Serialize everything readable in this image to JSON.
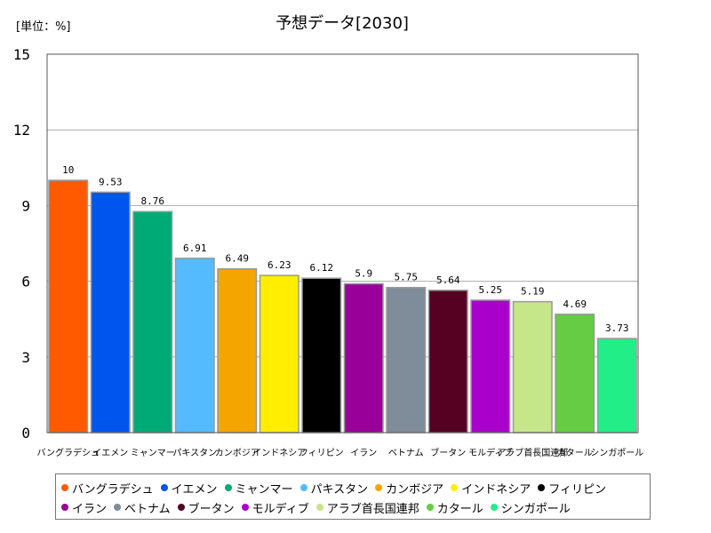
{
  "chart_data": {
    "type": "bar",
    "title": "予想データ[2030]",
    "unit_label": "[単位：%]",
    "ylim": [
      0,
      15
    ],
    "yticks": [
      0,
      3,
      6,
      9,
      12,
      15
    ],
    "grid": true,
    "legend_position": "bottom",
    "categories": [
      "バングラデシュ",
      "イエメン",
      "ミャンマー",
      "パキスタン",
      "カンボジア",
      "インドネシア",
      "フィリピン",
      "イラン",
      "ベトナム",
      "ブータン",
      "モルディブ",
      "アラブ首長国連邦",
      "カタール",
      "シンガポール"
    ],
    "values": [
      10,
      9.53,
      8.76,
      6.91,
      6.49,
      6.23,
      6.12,
      5.9,
      5.75,
      5.64,
      5.25,
      5.19,
      4.69,
      3.73
    ],
    "value_labels": [
      "10",
      "9.53",
      "8.76",
      "6.91",
      "6.49",
      "6.23",
      "6.12",
      "5.9",
      "5.75",
      "5.64",
      "5.25",
      "5.19",
      "4.69",
      "3.73"
    ],
    "colors": [
      "#ff5a00",
      "#0055ee",
      "#00aa77",
      "#55bbff",
      "#f5a500",
      "#ffee00",
      "#000000",
      "#990099",
      "#7f8c99",
      "#550022",
      "#aa00cc",
      "#c6e68a",
      "#66cc44",
      "#22ee88"
    ]
  }
}
